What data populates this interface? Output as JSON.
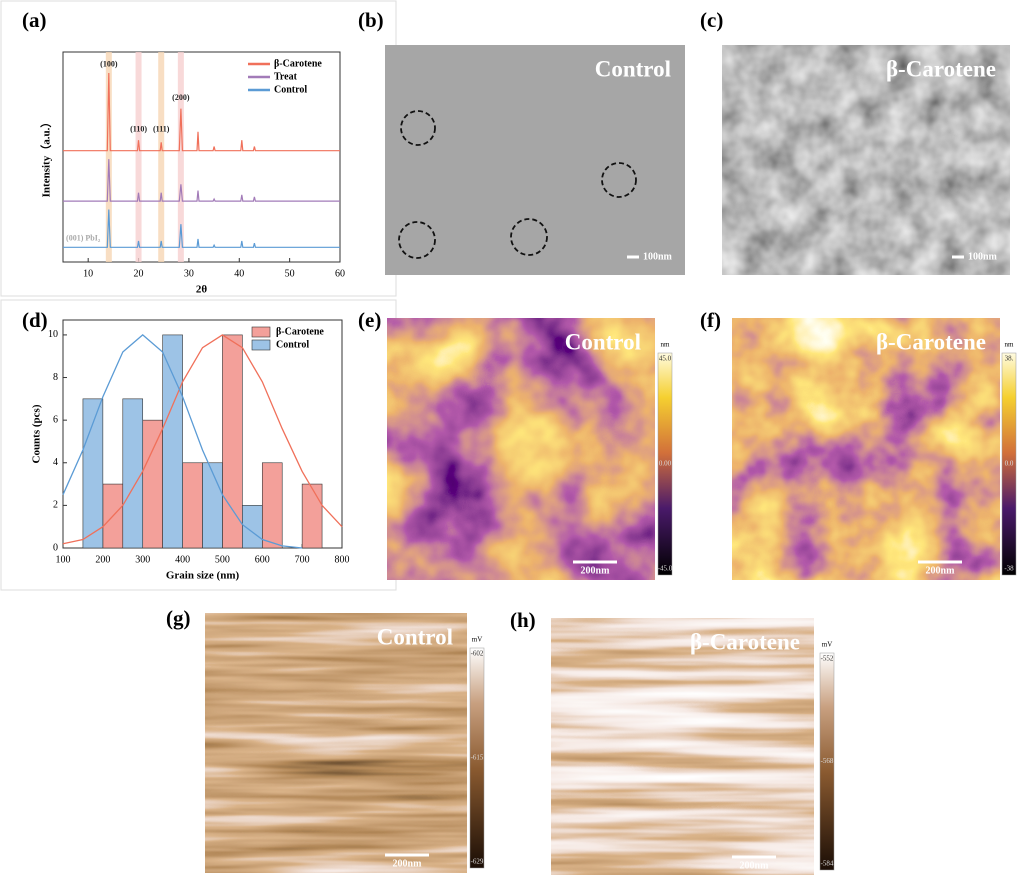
{
  "chart_data": [
    {
      "type": "line",
      "panel_label": "(a)",
      "xlabel": "2θ",
      "ylabel": "Intensity（a.u.）",
      "x": [
        5,
        13.8,
        14.1,
        14.4,
        19.8,
        20,
        20.2,
        24.3,
        24.5,
        24.7,
        28.1,
        28.4,
        28.7,
        31.6,
        31.8,
        32,
        34.8,
        35,
        35.2,
        40.3,
        40.5,
        40.7,
        42.8,
        43,
        43.2,
        60
      ],
      "series": [
        {
          "name": "β-Carotene",
          "color": "#f0705a",
          "values": [
            53,
            53,
            90,
            53,
            53,
            58,
            53,
            53,
            57,
            53,
            53,
            73,
            53,
            53,
            62,
            53,
            53,
            55,
            53,
            53,
            58,
            53,
            53,
            55,
            53,
            53
          ]
        },
        {
          "name": "Treat",
          "color": "#a27bb8",
          "values": [
            29,
            29,
            49,
            29,
            29,
            33,
            29,
            29,
            33,
            29,
            29,
            37,
            29,
            29,
            34,
            29,
            29,
            30,
            29,
            29,
            32,
            29,
            29,
            31,
            29,
            29
          ]
        },
        {
          "name": "Control",
          "color": "#5b9bd5",
          "values": [
            7,
            7,
            25,
            7,
            7,
            10,
            7,
            7,
            10,
            7,
            7,
            18,
            7,
            7,
            11,
            7,
            7,
            8,
            7,
            7,
            10,
            7,
            7,
            9,
            7,
            7
          ]
        }
      ],
      "xlim": [
        5,
        60
      ],
      "ylim": [
        0,
        100
      ],
      "xticks": [
        10,
        20,
        30,
        40,
        50,
        60
      ],
      "highlights": [
        14.1,
        20,
        24.5,
        28.4
      ],
      "annotations": [
        {
          "text": "(100)",
          "x": 14.1,
          "y": 94
        },
        {
          "text": "(110)",
          "x": 20,
          "y": 63
        },
        {
          "text": "(111)",
          "x": 24.5,
          "y": 63
        },
        {
          "text": "(200)",
          "x": 28.4,
          "y": 78
        },
        {
          "text": "(001) PbI₂",
          "x": 9,
          "y": 11
        }
      ],
      "legend": "upper right"
    },
    {
      "type": "bar",
      "panel_label": "(d)",
      "xlabel": "Grain size (nm)",
      "ylabel": "Counts (pcs)",
      "x": [
        200,
        300,
        400,
        500,
        600,
        700
      ],
      "series": [
        {
          "name": "β-Carotene",
          "color": "#f3a09a",
          "values": [
            3,
            6,
            4,
            10,
            4,
            3
          ],
          "fit_x": [
            100,
            150,
            200,
            250,
            300,
            350,
            400,
            450,
            500,
            550,
            600,
            650,
            700,
            750,
            800
          ],
          "fit_values": [
            0.2,
            0.4,
            1.0,
            2.0,
            3.6,
            5.6,
            7.8,
            9.4,
            10,
            9.4,
            7.8,
            5.6,
            3.6,
            2.0,
            1.0
          ],
          "fit_color": "#f0705a"
        },
        {
          "name": "Control",
          "color": "#9dc3e6",
          "values": [
            7,
            7,
            10,
            4,
            2,
            null
          ],
          "fit_x": [
            100,
            150,
            200,
            250,
            300,
            350,
            400,
            450,
            500,
            550,
            600,
            650,
            700
          ],
          "fit_values": [
            2.5,
            4.6,
            7.1,
            9.2,
            10,
            9.2,
            7.1,
            4.6,
            2.5,
            1.1,
            0.4,
            0.1,
            0
          ],
          "fit_color": "#5b9bd5"
        }
      ],
      "xlim": [
        100,
        800
      ],
      "ylim": [
        0,
        10.7
      ],
      "xticks": [
        100,
        200,
        300,
        400,
        500,
        600,
        700,
        800
      ],
      "yticks": [
        0,
        2,
        4,
        6,
        8,
        10
      ],
      "legend": "upper right"
    }
  ],
  "images": [
    {
      "panel_label": "(b)",
      "title": "Control",
      "kind": "sem",
      "scale_bar": "100nm"
    },
    {
      "panel_label": "(c)",
      "title": "β-Carotene",
      "kind": "sem",
      "scale_bar": "100nm"
    },
    {
      "panel_label": "(e)",
      "title": "Control",
      "kind": "afm",
      "scale_bar": "200nm",
      "colorbar": {
        "unit": "nm",
        "labels": [
          "45.0",
          "0.00",
          "-45.0"
        ]
      }
    },
    {
      "panel_label": "(f)",
      "title": "β-Carotene",
      "kind": "afm",
      "scale_bar": "200nm",
      "colorbar": {
        "unit": "nm",
        "labels": [
          "38.",
          "0.0",
          "-38"
        ]
      }
    },
    {
      "panel_label": "(g)",
      "title": "Control",
      "kind": "kpfm",
      "scale_bar": "200nm",
      "colorbar": {
        "unit": "mV",
        "labels": [
          "-602",
          "-615",
          "-629"
        ]
      }
    },
    {
      "panel_label": "(h)",
      "title": "β-Carotene",
      "kind": "kpfm",
      "scale_bar": "200nm",
      "colorbar": {
        "unit": "mV",
        "labels": [
          "-552",
          "-568",
          "-584"
        ]
      }
    }
  ]
}
